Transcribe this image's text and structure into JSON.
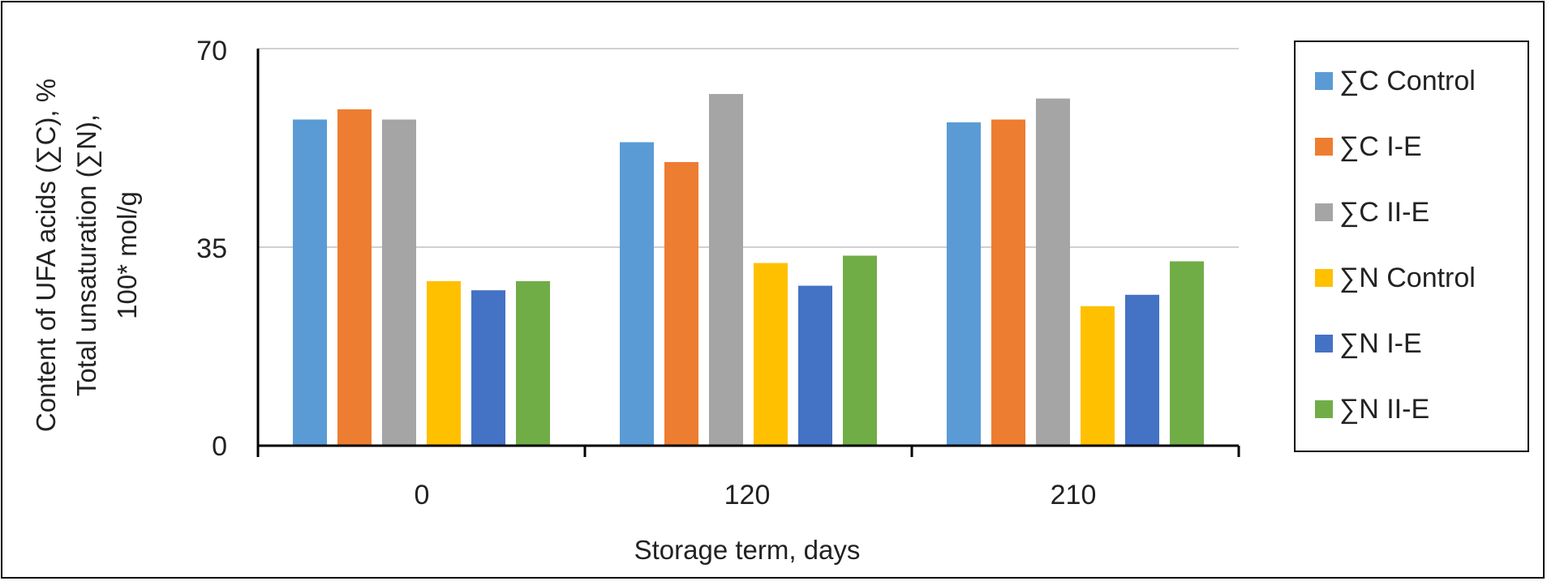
{
  "chart_data": {
    "type": "bar",
    "categories": [
      "0",
      "120",
      "210"
    ],
    "series": [
      {
        "name": "∑C Control",
        "color": "#5B9BD5",
        "values": [
          57.5,
          53.5,
          57
        ]
      },
      {
        "name": "∑C I-E",
        "color": "#ED7D31",
        "values": [
          59.3,
          50,
          57.5
        ]
      },
      {
        "name": "∑C II-E",
        "color": "#A5A5A5",
        "values": [
          57.5,
          62,
          61.2
        ]
      },
      {
        "name": "∑N Control",
        "color": "#FFC000",
        "values": [
          29,
          32.2,
          24.6
        ]
      },
      {
        "name": "∑N I-E",
        "color": "#4472C4",
        "values": [
          27.4,
          28.2,
          26.6
        ]
      },
      {
        "name": "∑N II-E",
        "color": "#70AD47",
        "values": [
          29,
          33.5,
          32.5
        ]
      }
    ],
    "yticks": [
      "0",
      "35",
      "70"
    ],
    "ylim": [
      0,
      70
    ],
    "xlabel": "Storage term, days",
    "ylabel_lines": [
      "Content of UFA acids (∑C), %",
      "Total unsaturation (∑N),",
      "100* mol/g"
    ],
    "grid": true,
    "legend_position": "right"
  }
}
